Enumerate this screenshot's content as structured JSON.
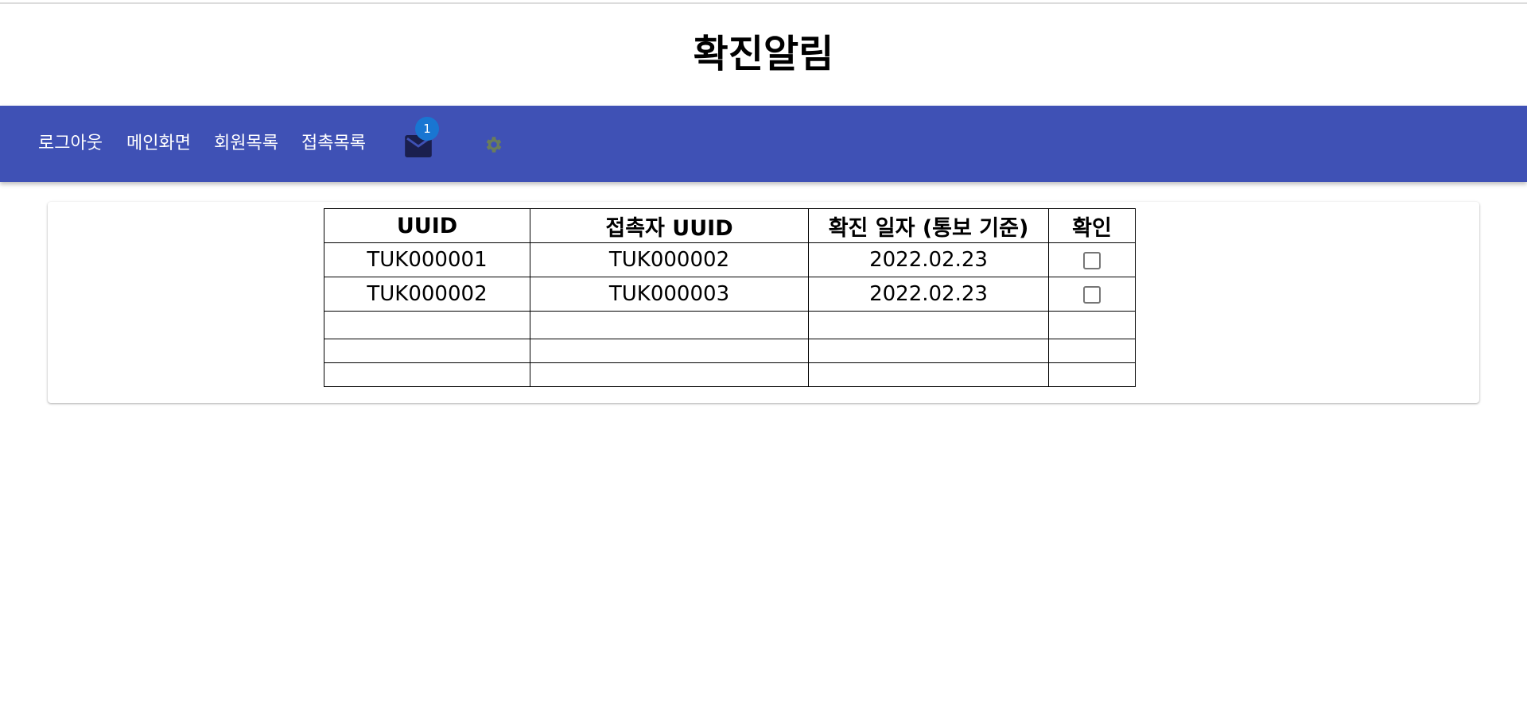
{
  "page": {
    "title": "확진알림"
  },
  "navbar": {
    "background": "#3f51b5",
    "links": [
      {
        "label": "로그아웃"
      },
      {
        "label": "메인화면"
      },
      {
        "label": "회원목록"
      },
      {
        "label": "접촉목록"
      }
    ],
    "mail": {
      "icon": "mail-icon",
      "badge_count": "1",
      "badge_color": "#1976d2"
    },
    "settings": {
      "icon": "gear-icon"
    }
  },
  "table": {
    "headers": [
      "UUID",
      "접촉자 UUID",
      "확진 일자 (통보 기준)",
      "확인"
    ],
    "rows": [
      {
        "uuid": "TUK000001",
        "contact_uuid": "TUK000002",
        "date": "2022.02.23",
        "checked": false
      },
      {
        "uuid": "TUK000002",
        "contact_uuid": "TUK000003",
        "date": "2022.02.23",
        "checked": false
      }
    ]
  }
}
